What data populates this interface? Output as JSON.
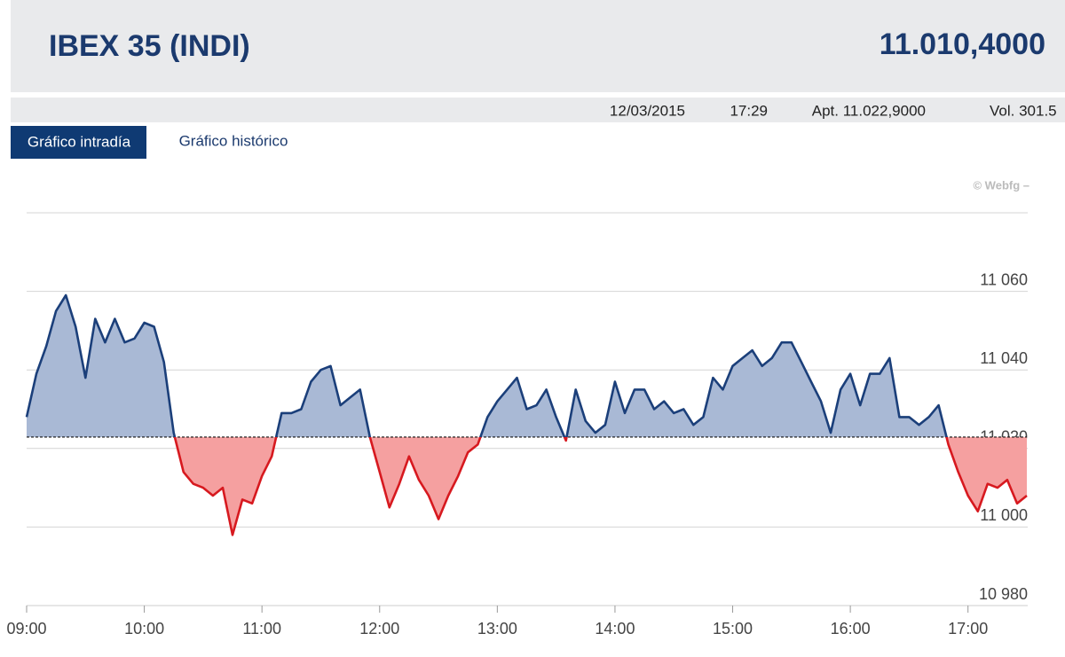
{
  "header": {
    "title": "IBEX 35 (INDI)",
    "value": "11.010,4000"
  },
  "info": {
    "date": "12/03/2015",
    "time": "17:29",
    "open": "Apt. 11.022,9000",
    "volume": "Vol. 301.5"
  },
  "tabs": [
    "Gráfico intradía",
    "Gráfico histórico"
  ],
  "watermark": "© Webfg –",
  "chart_data": {
    "type": "line",
    "reference": 11022.9,
    "colors": {
      "above": "#1b3f7a",
      "below": "#d7191f",
      "above_fill": "#a9b9d5",
      "below_fill": "#f5a0a0"
    },
    "x": [
      540,
      545,
      550,
      555,
      560,
      565,
      570,
      575,
      580,
      585,
      590,
      595,
      600,
      605,
      610,
      615,
      620,
      625,
      630,
      635,
      640,
      645,
      650,
      655,
      660,
      665,
      670,
      675,
      680,
      685,
      690,
      695,
      700,
      705,
      710,
      715,
      720,
      725,
      730,
      735,
      740,
      745,
      750,
      755,
      760,
      765,
      770,
      775,
      780,
      785,
      790,
      795,
      800,
      805,
      810,
      815,
      820,
      825,
      830,
      835,
      840,
      845,
      850,
      855,
      860,
      865,
      870,
      875,
      880,
      885,
      890,
      895,
      900,
      905,
      910,
      915,
      920,
      925,
      930,
      935,
      940,
      945,
      950,
      955,
      960,
      965,
      970,
      975,
      980,
      985,
      990,
      995,
      1000,
      1005,
      1010,
      1015,
      1020,
      1025,
      1030,
      1035,
      1040,
      1045,
      1050
    ],
    "values": [
      11028,
      11039,
      11046,
      11055,
      11059,
      11051,
      11038,
      11053,
      11047,
      11053,
      11047,
      11048,
      11052,
      11051,
      11042,
      11024,
      11014,
      11011,
      11010,
      11008,
      11010,
      10998,
      11007,
      11006,
      11013,
      11018,
      11029,
      11029,
      11030,
      11037,
      11040,
      11041,
      11031,
      11033,
      11035,
      11023,
      11014,
      11005,
      11011,
      11018,
      11012,
      11008,
      11002,
      11008,
      11013,
      11019,
      11021,
      11028,
      11032,
      11035,
      11038,
      11030,
      11031,
      11035,
      11028,
      11022,
      11035,
      11027,
      11024,
      11026,
      11037,
      11029,
      11035,
      11035,
      11030,
      11032,
      11029,
      11030,
      11026,
      11028,
      11038,
      11035,
      11041,
      11043,
      11045,
      11041,
      11043,
      11047,
      11047,
      11042,
      11037,
      11032,
      11024,
      11035,
      11039,
      11031,
      11039,
      11039,
      11043,
      11028,
      11028,
      11026,
      11028,
      11031,
      11021,
      11014,
      11008,
      11004,
      11011,
      11010,
      11012,
      11006,
      11008
    ],
    "xlim": [
      540,
      1050
    ],
    "xticks": [
      {
        "value": 540,
        "label": "09:00"
      },
      {
        "value": 600,
        "label": "10:00"
      },
      {
        "value": 660,
        "label": "11:00"
      },
      {
        "value": 720,
        "label": "12:00"
      },
      {
        "value": 780,
        "label": "13:00"
      },
      {
        "value": 840,
        "label": "14:00"
      },
      {
        "value": 900,
        "label": "15:00"
      },
      {
        "value": 960,
        "label": "16:00"
      },
      {
        "value": 1020,
        "label": "17:00"
      }
    ],
    "ylim": [
      10980,
      11080
    ],
    "yticks": [
      {
        "value": 10980,
        "label": "10 980"
      },
      {
        "value": 11000,
        "label": "11 000"
      },
      {
        "value": 11020,
        "label": "11 020"
      },
      {
        "value": 11040,
        "label": "11 040"
      },
      {
        "value": 11060,
        "label": "11 060"
      }
    ],
    "grid": true
  }
}
